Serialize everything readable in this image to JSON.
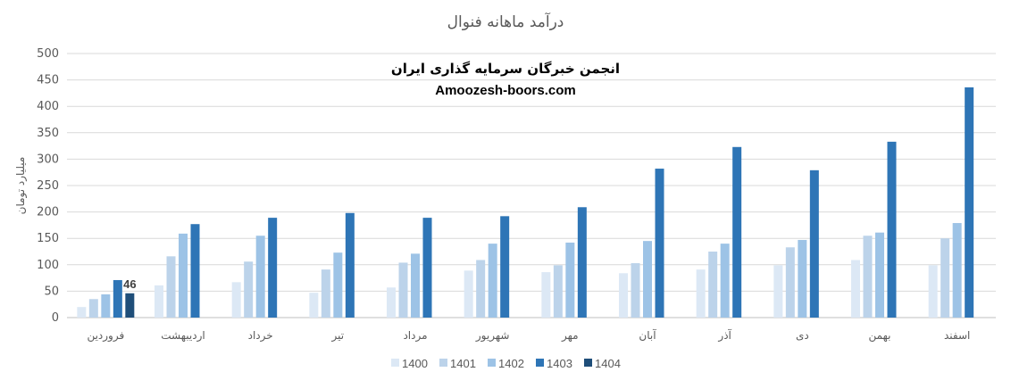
{
  "chart_data": {
    "type": "bar",
    "title": "درآمد ماهانه فنوال",
    "ylabel": "میلیارد تومان",
    "ylim": [
      0,
      500
    ],
    "yticks": [
      0,
      50,
      100,
      150,
      200,
      250,
      300,
      350,
      400,
      450,
      500
    ],
    "grid": true,
    "legend_position": "bottom",
    "watermark": [
      "انجمن خبرگان سرمایه گذاری ایران",
      "Amoozesh-boors.com"
    ],
    "categories": [
      "فروردین",
      "اردیبهشت",
      "خرداد",
      "تیر",
      "مرداد",
      "شهریور",
      "مهر",
      "آبان",
      "آذر",
      "دی",
      "بهمن",
      "اسفند"
    ],
    "series": [
      {
        "name": "1400",
        "color": "#dce8f5",
        "values": [
          20,
          61,
          67,
          47,
          57,
          89,
          86,
          84,
          91,
          99,
          109,
          99
        ]
      },
      {
        "name": "1401",
        "color": "#bcd3ea",
        "values": [
          35,
          116,
          106,
          91,
          104,
          109,
          99,
          103,
          125,
          133,
          155,
          150
        ]
      },
      {
        "name": "1402",
        "color": "#9dc3e6",
        "values": [
          44,
          159,
          155,
          123,
          121,
          140,
          142,
          145,
          140,
          147,
          161,
          179
        ]
      },
      {
        "name": "1403",
        "color": "#2e75b6",
        "values": [
          71,
          177,
          189,
          198,
          189,
          192,
          209,
          282,
          323,
          279,
          333,
          436
        ]
      },
      {
        "name": "1404",
        "color": "#1f4e79",
        "values": [
          46,
          null,
          null,
          null,
          null,
          null,
          null,
          null,
          null,
          null,
          null,
          null
        ]
      }
    ],
    "data_labels": [
      {
        "series": "1404",
        "category": "فروردین",
        "text": "46"
      }
    ]
  }
}
